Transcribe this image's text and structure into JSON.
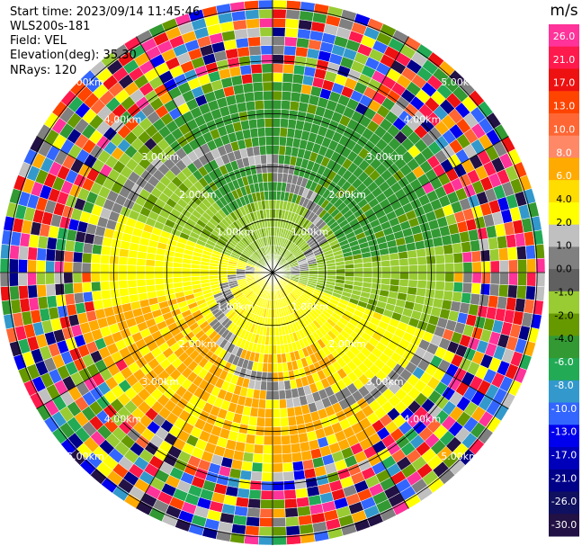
{
  "header": {
    "start_time": "Start time: 2023/09/14 11:45:46",
    "instrument": "WLS200s-181",
    "field": "Field: VEL",
    "elevation": "Elevation(deg): 35.30",
    "nrays": "NRays: 120"
  },
  "colorbar": {
    "unit": "m/s",
    "ticks": [
      "26.0",
      "21.0",
      "17.0",
      "13.0",
      "10.0",
      "8.0",
      "6.0",
      "4.0",
      "2.0",
      "1.0",
      "0.0",
      "-1.0",
      "-2.0",
      "-4.0",
      "-6.0",
      "-8.0",
      "-10.0",
      "-13.0",
      "-17.0",
      "-21.0",
      "-26.0",
      "-30.0"
    ],
    "colors": [
      "#ff3399",
      "#ff1a4d",
      "#ee1111",
      "#ff4400",
      "#ff6633",
      "#ff8866",
      "#ffaa00",
      "#ffdd00",
      "#ffff00",
      "#c0c0c0",
      "#808080",
      "#606060",
      "#99cc33",
      "#669900",
      "#339933",
      "#22aa55",
      "#3399cc",
      "#3366ff",
      "#0000ee",
      "#0000bb",
      "#000088",
      "#101060",
      "#221144"
    ]
  },
  "chart_data": {
    "type": "heatmap",
    "projection": "polar (PPI)",
    "n_rays": 120,
    "range_rings_km": [
      1.0,
      2.0,
      3.0,
      4.0,
      5.0
    ],
    "ring_labels": [
      "1.00km",
      "2.00km",
      "3.00km",
      "4.00km",
      "5.00km"
    ],
    "field": "VEL",
    "unit": "m/s",
    "color_levels": [
      -30,
      -26,
      -21,
      -17,
      -13,
      -10,
      -8,
      -6,
      -4,
      -2,
      -1,
      0,
      1,
      2,
      4,
      6,
      8,
      10,
      13,
      17,
      21,
      26
    ]
  }
}
